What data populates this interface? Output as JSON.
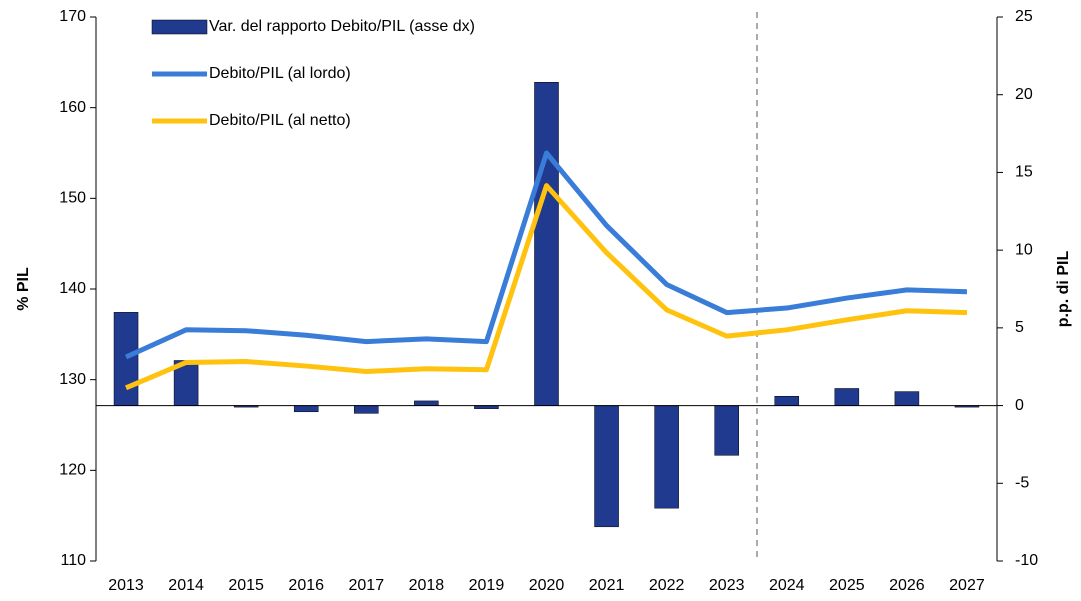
{
  "chart_data": {
    "type": "bar-line",
    "categories": [
      "2013",
      "2014",
      "2015",
      "2016",
      "2017",
      "2018",
      "2019",
      "2020",
      "2021",
      "2022",
      "2023",
      "2024",
      "2025",
      "2026",
      "2027"
    ],
    "series": [
      {
        "name": "Var. del rapporto Debito/PIL (asse dx)",
        "type": "bar",
        "axis": "y2",
        "color": "#203a8f",
        "values": [
          6.0,
          2.9,
          -0.1,
          -0.4,
          -0.5,
          0.3,
          -0.2,
          20.8,
          -7.8,
          -6.6,
          -3.2,
          0.6,
          1.1,
          0.9,
          -0.1
        ]
      },
      {
        "name": "Debito/PIL (al lordo)",
        "type": "line",
        "color": "#3a7dd8",
        "values": [
          132.5,
          135.5,
          135.4,
          134.9,
          134.2,
          134.5,
          134.2,
          155.0,
          147.0,
          140.5,
          137.4,
          137.9,
          139.0,
          139.9,
          139.7
        ]
      },
      {
        "name": "Debito/PIL (al netto)",
        "type": "line",
        "color": "#ffc20e",
        "values": [
          129.1,
          131.9,
          132.0,
          131.5,
          130.9,
          131.2,
          131.1,
          151.4,
          144.0,
          137.7,
          134.8,
          135.5,
          136.6,
          137.6,
          137.4
        ]
      }
    ],
    "ylabel": "% PIL",
    "y2label": "p.p. di PIL",
    "ylim": [
      110,
      170
    ],
    "yticks": [
      110,
      120,
      130,
      140,
      150,
      160,
      170
    ],
    "y2lim": [
      -10,
      25
    ],
    "y2ticks": [
      -10,
      -5,
      0,
      5,
      10,
      15,
      20,
      25
    ],
    "legend": "top-left"
  }
}
